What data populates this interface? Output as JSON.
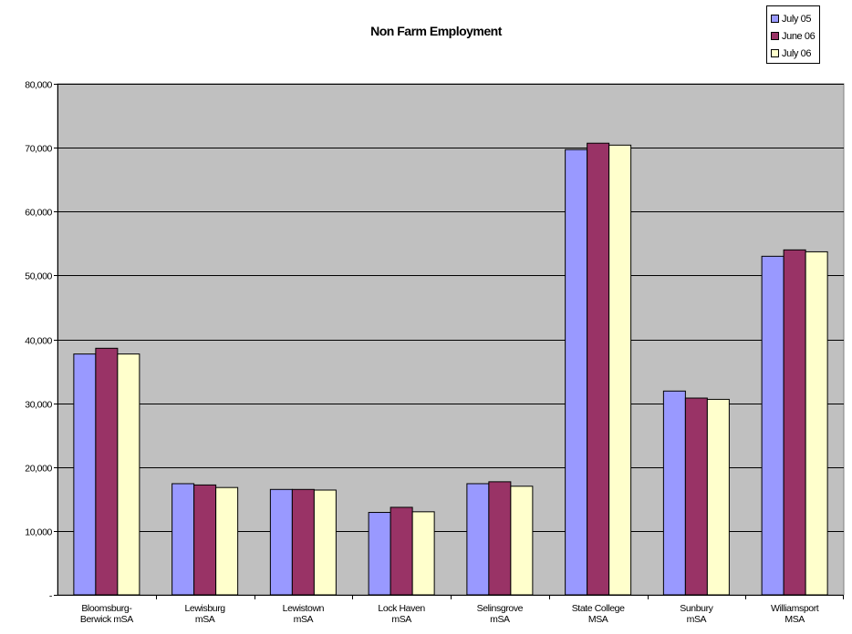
{
  "chart_data": {
    "type": "bar",
    "title": "Non Farm Employment",
    "xlabel": "",
    "ylabel": "",
    "ylim": [
      0,
      80000
    ],
    "y_ticks": [
      0,
      10000,
      20000,
      30000,
      40000,
      50000,
      60000,
      70000,
      80000
    ],
    "y_tick_labels": [
      "-",
      "10,000",
      "20,000",
      "30,000",
      "40,000",
      "50,000",
      "60,000",
      "70,000",
      "80,000"
    ],
    "categories": [
      [
        "Bloomsburg-",
        "Berwick mSA"
      ],
      [
        "Lewisburg",
        "mSA"
      ],
      [
        "Lewistown",
        "mSA"
      ],
      [
        "Lock Haven",
        "mSA"
      ],
      [
        "Selinsgrove",
        "mSA"
      ],
      [
        "State College",
        "MSA"
      ],
      [
        "Sunbury",
        "mSA"
      ],
      [
        "Williamsport",
        "MSA"
      ]
    ],
    "series": [
      {
        "name": "July 05",
        "color": "#9999ff",
        "values": [
          37700,
          17400,
          16500,
          12900,
          17400,
          69700,
          31900,
          53000
        ]
      },
      {
        "name": "June 06",
        "color": "#993366",
        "values": [
          38600,
          17200,
          16500,
          13700,
          17700,
          70700,
          30800,
          54000
        ]
      },
      {
        "name": "July 06",
        "color": "#ffffcc",
        "values": [
          37700,
          16800,
          16400,
          13000,
          17000,
          70400,
          30600,
          53700
        ]
      }
    ],
    "plot_background": "#c0c0c0",
    "grid": true,
    "legend_position": "top-right"
  }
}
